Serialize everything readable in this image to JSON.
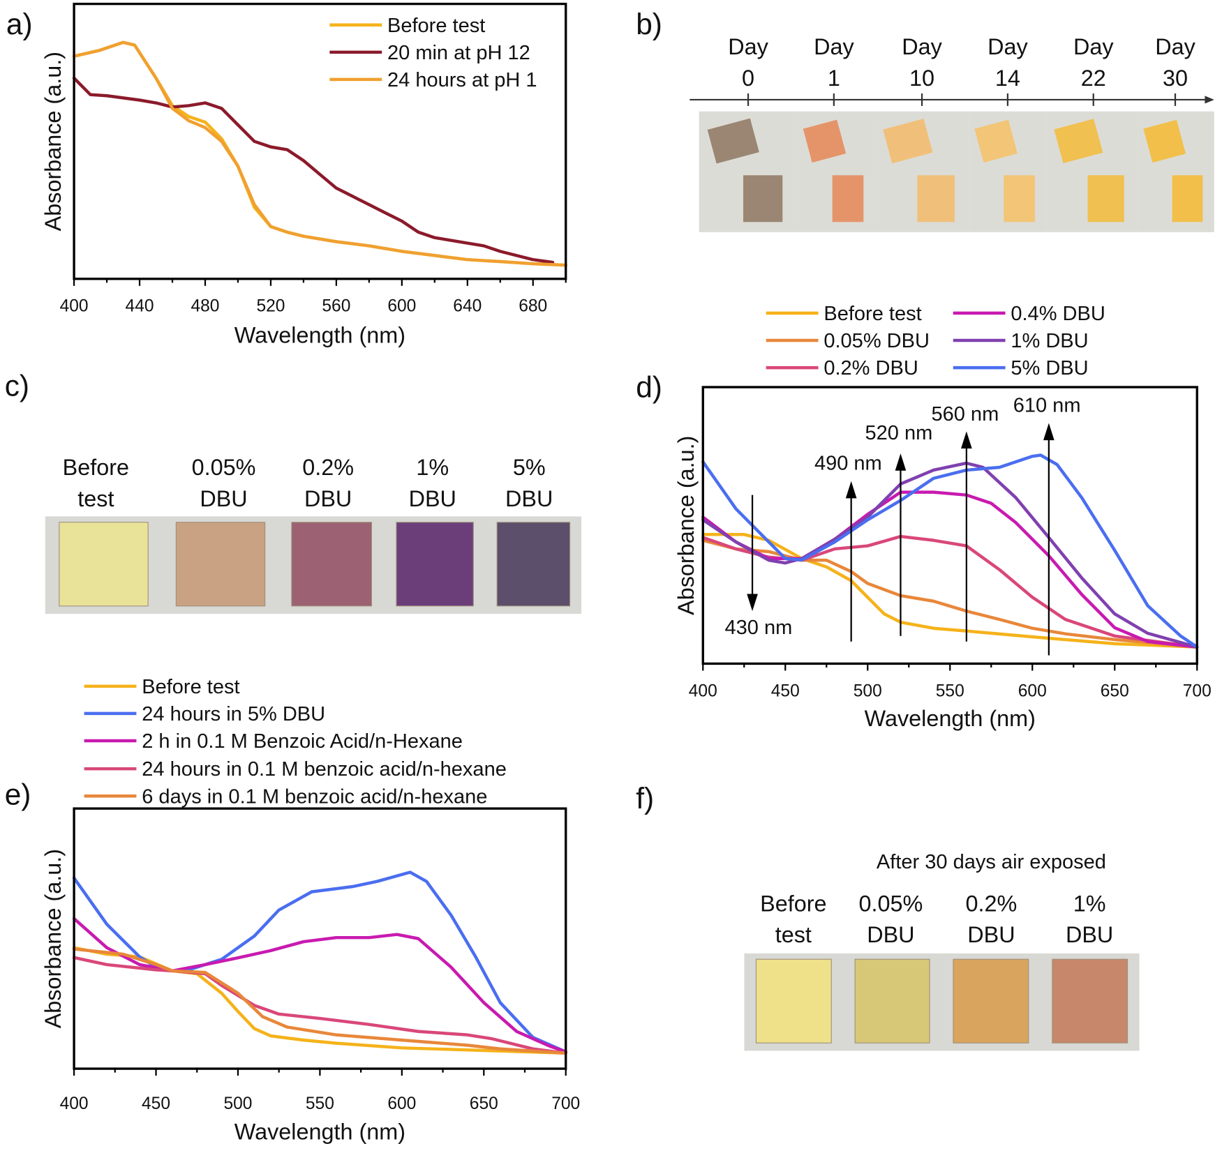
{
  "panels": {
    "a": "a)",
    "b": "b)",
    "c": "c)",
    "d": "d)",
    "e": "e)",
    "f": "f)"
  },
  "chart_data": [
    {
      "id": "a",
      "type": "line",
      "xlabel": "Wavelength (nm)",
      "ylabel": "Absorbance (a.u.)",
      "xlim": [
        400,
        700
      ],
      "ylim": [
        0,
        1
      ],
      "xticks": [
        400,
        440,
        480,
        520,
        560,
        600,
        640,
        680
      ],
      "minor_step": 20,
      "legend": "top-right",
      "series": [
        {
          "name": "Before test",
          "color": "#f5b21a",
          "x": [
            400,
            415,
            430,
            437,
            450,
            460,
            470,
            480,
            490,
            500,
            510,
            520,
            530,
            540,
            560,
            580,
            600,
            620,
            640,
            660,
            680,
            700
          ],
          "y": [
            0.81,
            0.83,
            0.86,
            0.85,
            0.73,
            0.63,
            0.59,
            0.57,
            0.51,
            0.41,
            0.26,
            0.19,
            0.17,
            0.155,
            0.135,
            0.12,
            0.1,
            0.085,
            0.07,
            0.063,
            0.055,
            0.05
          ]
        },
        {
          "name": "20 min at pH 12",
          "color": "#8b1a2b",
          "x": [
            400,
            410,
            420,
            440,
            450,
            460,
            470,
            480,
            490,
            500,
            510,
            520,
            530,
            540,
            550,
            560,
            570,
            580,
            590,
            600,
            610,
            620,
            640,
            650,
            660,
            680,
            692
          ],
          "y": [
            0.73,
            0.67,
            0.666,
            0.65,
            0.64,
            0.625,
            0.63,
            0.64,
            0.62,
            0.56,
            0.5,
            0.48,
            0.47,
            0.43,
            0.38,
            0.33,
            0.3,
            0.27,
            0.24,
            0.21,
            0.17,
            0.15,
            0.13,
            0.12,
            0.1,
            0.07,
            0.06
          ]
        },
        {
          "name": "24 hours at pH 1",
          "color": "#f0a030",
          "x": [
            400,
            415,
            430,
            437,
            450,
            460,
            470,
            480,
            490,
            500,
            510,
            520,
            530,
            540,
            560,
            580,
            600,
            620,
            640,
            660,
            680,
            700
          ],
          "y": [
            0.81,
            0.83,
            0.86,
            0.85,
            0.73,
            0.62,
            0.575,
            0.55,
            0.5,
            0.41,
            0.27,
            0.19,
            0.17,
            0.155,
            0.135,
            0.12,
            0.1,
            0.085,
            0.07,
            0.063,
            0.055,
            0.05
          ]
        }
      ]
    },
    {
      "id": "d",
      "type": "line",
      "xlabel": "Wavelength (nm)",
      "ylabel": "Absorbance (a.u.)",
      "xlim": [
        400,
        700
      ],
      "ylim": [
        0,
        1
      ],
      "xticks": [
        400,
        450,
        500,
        550,
        600,
        650,
        700
      ],
      "minor_step": 25,
      "legend": "top (outside, two columns)",
      "series": [
        {
          "name": "Before test",
          "color": "#f5b21a",
          "x": [
            400,
            425,
            440,
            460,
            475,
            490,
            500,
            510,
            520,
            540,
            560,
            600,
            650,
            700
          ],
          "y": [
            0.467,
            0.467,
            0.446,
            0.38,
            0.35,
            0.3,
            0.24,
            0.18,
            0.15,
            0.128,
            0.118,
            0.097,
            0.072,
            0.06
          ]
        },
        {
          "name": "0.05% DBU",
          "color": "#e8873a",
          "x": [
            400,
            420,
            440,
            460,
            475,
            490,
            500,
            520,
            540,
            560,
            580,
            600,
            620,
            650,
            700
          ],
          "y": [
            0.446,
            0.415,
            0.405,
            0.374,
            0.374,
            0.333,
            0.29,
            0.246,
            0.226,
            0.19,
            0.16,
            0.128,
            0.108,
            0.087,
            0.06
          ]
        },
        {
          "name": "0.2% DBU",
          "color": "#d9477a",
          "x": [
            400,
            420,
            440,
            460,
            480,
            500,
            520,
            540,
            560,
            580,
            600,
            620,
            650,
            700
          ],
          "y": [
            0.456,
            0.415,
            0.385,
            0.374,
            0.415,
            0.426,
            0.46,
            0.446,
            0.426,
            0.34,
            0.24,
            0.16,
            0.1,
            0.06
          ]
        },
        {
          "name": "0.4% DBU",
          "color": "#c81ab0",
          "x": [
            400,
            420,
            440,
            460,
            480,
            500,
            520,
            540,
            560,
            575,
            590,
            610,
            630,
            650,
            670,
            700
          ],
          "y": [
            0.53,
            0.44,
            0.38,
            0.38,
            0.45,
            0.54,
            0.62,
            0.62,
            0.61,
            0.58,
            0.51,
            0.39,
            0.25,
            0.13,
            0.08,
            0.06
          ]
        },
        {
          "name": "1% DBU",
          "color": "#8040b0",
          "x": [
            400,
            420,
            440,
            450,
            460,
            480,
            500,
            520,
            540,
            560,
            570,
            590,
            610,
            630,
            650,
            670,
            700
          ],
          "y": [
            0.52,
            0.44,
            0.374,
            0.364,
            0.38,
            0.45,
            0.53,
            0.65,
            0.7,
            0.725,
            0.71,
            0.6,
            0.456,
            0.31,
            0.18,
            0.11,
            0.06
          ]
        },
        {
          "name": "5% DBU",
          "color": "#4a6ef0",
          "x": [
            400,
            420,
            440,
            450,
            460,
            480,
            500,
            520,
            540,
            560,
            580,
            600,
            605,
            615,
            630,
            650,
            670,
            690,
            700
          ],
          "y": [
            0.73,
            0.56,
            0.44,
            0.38,
            0.375,
            0.44,
            0.52,
            0.59,
            0.67,
            0.7,
            0.71,
            0.75,
            0.754,
            0.72,
            0.6,
            0.41,
            0.21,
            0.1,
            0.06
          ]
        }
      ],
      "annotations": [
        {
          "text": "430 nm",
          "x": 430,
          "direction": "down",
          "from": 0.61,
          "to": 0.19
        },
        {
          "text": "490 nm",
          "x": 490,
          "direction": "up",
          "from": 0.08,
          "to": 0.66
        },
        {
          "text": "520 nm",
          "x": 520,
          "direction": "up",
          "from": 0.1,
          "to": 0.76
        },
        {
          "text": "560 nm",
          "x": 560,
          "direction": "up",
          "from": 0.08,
          "to": 0.84
        },
        {
          "text": "610 nm",
          "x": 610,
          "direction": "up",
          "from": 0.03,
          "to": 0.87
        }
      ]
    },
    {
      "id": "e",
      "type": "line",
      "xlabel": "Wavelength (nm)",
      "ylabel": "Absorbance (a.u.)",
      "xlim": [
        400,
        700
      ],
      "ylim": [
        0,
        1
      ],
      "xticks": [
        400,
        450,
        500,
        550,
        600,
        650,
        700
      ],
      "minor_step": 25,
      "legend": "top (outside)",
      "series": [
        {
          "name": "Before test",
          "color": "#f5b21a",
          "x": [
            400,
            420,
            440,
            460,
            475,
            490,
            500,
            510,
            520,
            540,
            560,
            600,
            650,
            700
          ],
          "y": [
            0.465,
            0.44,
            0.43,
            0.376,
            0.365,
            0.29,
            0.22,
            0.154,
            0.126,
            0.11,
            0.098,
            0.08,
            0.07,
            0.06
          ]
        },
        {
          "name": "24 hours in 5% DBU",
          "color": "#4a6ef0",
          "x": [
            400,
            420,
            440,
            450,
            460,
            470,
            490,
            510,
            525,
            545,
            570,
            585,
            605,
            615,
            630,
            645,
            660,
            680,
            700
          ],
          "y": [
            0.733,
            0.555,
            0.43,
            0.39,
            0.376,
            0.38,
            0.42,
            0.51,
            0.61,
            0.68,
            0.7,
            0.72,
            0.755,
            0.72,
            0.59,
            0.43,
            0.254,
            0.12,
            0.065
          ]
        },
        {
          "name": "2 h in 0.1 M Benzoic Acid/n-Hexane",
          "color": "#c81ab0",
          "x": [
            400,
            420,
            440,
            460,
            480,
            500,
            520,
            540,
            560,
            580,
            597,
            610,
            630,
            650,
            670,
            690,
            700
          ],
          "y": [
            0.577,
            0.465,
            0.4,
            0.376,
            0.4,
            0.426,
            0.454,
            0.488,
            0.504,
            0.504,
            0.516,
            0.5,
            0.39,
            0.254,
            0.143,
            0.087,
            0.065
          ]
        },
        {
          "name": "24 hours in 0.1 M benzoic acid/n-hexane",
          "color": "#d9477a",
          "x": [
            400,
            420,
            450,
            460,
            480,
            490,
            510,
            525,
            550,
            580,
            610,
            640,
            655,
            680,
            700
          ],
          "y": [
            0.427,
            0.4,
            0.38,
            0.376,
            0.365,
            0.32,
            0.243,
            0.21,
            0.193,
            0.17,
            0.143,
            0.13,
            0.115,
            0.076,
            0.06
          ]
        },
        {
          "name": "6 days in 0.1 M benzoic acid/n-hexane",
          "color": "#e8873a",
          "x": [
            400,
            430,
            450,
            460,
            480,
            500,
            515,
            530,
            560,
            600,
            640,
            660,
            700
          ],
          "y": [
            0.46,
            0.44,
            0.4,
            0.376,
            0.37,
            0.29,
            0.2,
            0.16,
            0.13,
            0.11,
            0.09,
            0.076,
            0.06
          ]
        }
      ]
    }
  ],
  "panel_b": {
    "days": [
      {
        "word": "Day",
        "num": "0",
        "color": "#9a8672"
      },
      {
        "word": "Day",
        "num": "1",
        "color": "#e5946a"
      },
      {
        "word": "Day",
        "num": "10",
        "color": "#f0c07a"
      },
      {
        "word": "Day",
        "num": "14",
        "color": "#f2c577"
      },
      {
        "word": "Day",
        "num": "22",
        "color": "#f0c050"
      },
      {
        "word": "Day",
        "num": "30",
        "color": "#f2bf4a"
      }
    ]
  },
  "panel_c": {
    "samples": [
      {
        "line1": "Before",
        "line2": "test",
        "color": "#e9e39a"
      },
      {
        "line1": "0.05%",
        "line2": "DBU",
        "color": "#c9a283"
      },
      {
        "line1": "0.2%",
        "line2": "DBU",
        "color": "#9c6172"
      },
      {
        "line1": "1%",
        "line2": "DBU",
        "color": "#6b3e7a"
      },
      {
        "line1": "5%",
        "line2": "DBU",
        "color": "#5c4f6c"
      }
    ]
  },
  "panel_f": {
    "title": "After 30 days air exposed",
    "samples": [
      {
        "line1": "Before",
        "line2": "test",
        "color": "#eee18a"
      },
      {
        "line1": "0.05%",
        "line2": "DBU",
        "color": "#d6c877"
      },
      {
        "line1": "0.2%",
        "line2": "DBU",
        "color": "#d9a45e"
      },
      {
        "line1": "1%",
        "line2": "DBU",
        "color": "#c6876a"
      }
    ]
  }
}
